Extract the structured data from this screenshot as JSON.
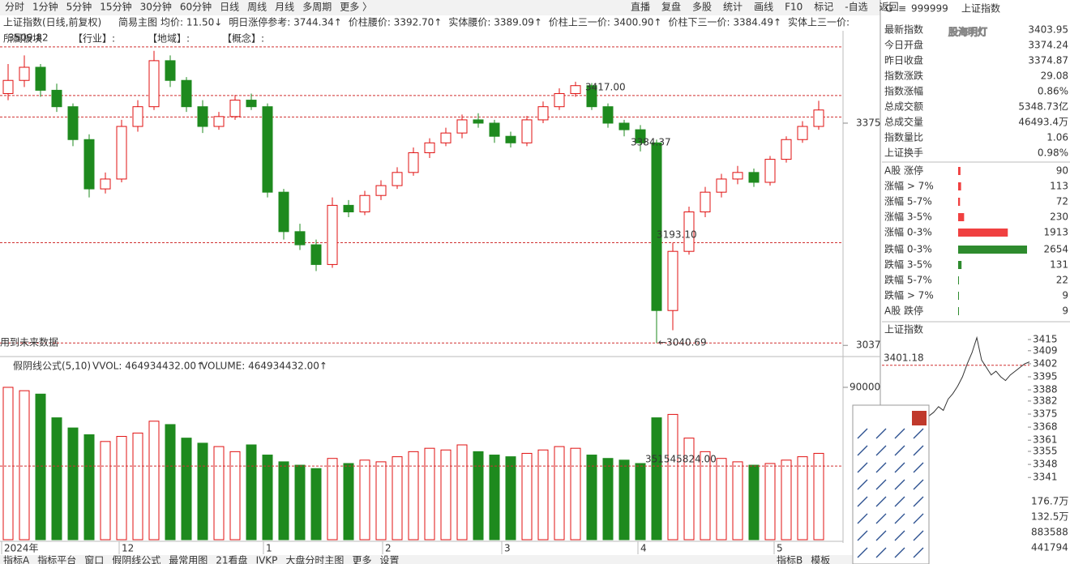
{
  "toolbar": {
    "left": [
      "分时",
      "1分钟",
      "5分钟",
      "15分钟",
      "30分钟",
      "60分钟",
      "日线",
      "周线",
      "月线",
      "多周期",
      "更多 〉"
    ],
    "right": [
      "直播",
      "复盘",
      "多股",
      "统计",
      "画线",
      "F10",
      "标记",
      "-自选",
      "返回"
    ]
  },
  "info_bar": {
    "title": "上证指数(日线,前复权)",
    "mode": "简易主图",
    "items": [
      "均价: 11.50↓",
      "明日涨停参考: 3744.34↑",
      "价柱腰价: 3392.70↑",
      "实体腰价: 3389.09↑",
      "价柱上三一价: 3400.90↑",
      "价柱下三一价: 3384.49↑",
      "实体上三一价:"
    ]
  },
  "sector_row": [
    "所属板块",
    "【行业】:",
    "【地域】:",
    "【概念】:"
  ],
  "chart_data": {
    "type": "candlestick",
    "ylim": [
      3020,
      3513
    ],
    "yticks": [
      3375,
      3037
    ],
    "candles": [
      [
        3420,
        3465,
        3410,
        3440
      ],
      [
        3440,
        3478,
        3430,
        3460
      ],
      [
        3460,
        3465,
        3415,
        3425
      ],
      [
        3425,
        3435,
        3392,
        3400
      ],
      [
        3400,
        3405,
        3340,
        3350
      ],
      [
        3350,
        3358,
        3262,
        3275
      ],
      [
        3275,
        3300,
        3268,
        3290
      ],
      [
        3290,
        3380,
        3285,
        3370
      ],
      [
        3370,
        3410,
        3362,
        3400
      ],
      [
        3400,
        3485,
        3395,
        3470
      ],
      [
        3470,
        3478,
        3430,
        3440
      ],
      [
        3440,
        3445,
        3392,
        3400
      ],
      [
        3400,
        3410,
        3360,
        3370
      ],
      [
        3370,
        3392,
        3365,
        3385
      ],
      [
        3385,
        3418,
        3380,
        3410
      ],
      [
        3410,
        3420,
        3395,
        3400
      ],
      [
        3400,
        3405,
        3262,
        3270
      ],
      [
        3270,
        3275,
        3198,
        3210
      ],
      [
        3210,
        3222,
        3182,
        3190
      ],
      [
        3190,
        3198,
        3150,
        3160
      ],
      [
        3160,
        3262,
        3155,
        3250
      ],
      [
        3250,
        3258,
        3232,
        3240
      ],
      [
        3240,
        3272,
        3235,
        3265
      ],
      [
        3265,
        3288,
        3258,
        3280
      ],
      [
        3280,
        3308,
        3275,
        3300
      ],
      [
        3300,
        3338,
        3295,
        3330
      ],
      [
        3330,
        3352,
        3322,
        3345
      ],
      [
        3345,
        3368,
        3340,
        3360
      ],
      [
        3360,
        3388,
        3352,
        3380
      ],
      [
        3380,
        3390,
        3368,
        3375
      ],
      [
        3375,
        3380,
        3345,
        3355
      ],
      [
        3355,
        3362,
        3338,
        3345
      ],
      [
        3345,
        3386,
        3340,
        3380
      ],
      [
        3380,
        3408,
        3375,
        3400
      ],
      [
        3400,
        3428,
        3395,
        3420
      ],
      [
        3420,
        3438,
        3415,
        3432
      ],
      [
        3432,
        3436,
        3395,
        3400
      ],
      [
        3400,
        3405,
        3368,
        3375
      ],
      [
        3375,
        3380,
        3355,
        3365
      ],
      [
        3365,
        3372,
        3332,
        3345
      ],
      [
        3345,
        3350,
        3040.69,
        3090
      ],
      [
        3090,
        3193.1,
        3060,
        3180
      ],
      [
        3180,
        3248,
        3175,
        3240
      ],
      [
        3240,
        3278,
        3232,
        3270
      ],
      [
        3270,
        3298,
        3262,
        3290
      ],
      [
        3290,
        3310,
        3282,
        3300
      ],
      [
        3300,
        3306,
        3278,
        3285
      ],
      [
        3285,
        3325,
        3280,
        3320
      ],
      [
        3320,
        3355,
        3315,
        3350
      ],
      [
        3350,
        3378,
        3345,
        3370
      ],
      [
        3370,
        3409,
        3365,
        3395
      ]
    ],
    "up_color": "#e01010",
    "down_color": "#1e8a1e",
    "ref_lines": [
      3491,
      3417,
      3384.37,
      3193.1,
      3040.69
    ],
    "annotations": [
      "3509.82",
      "3417.00",
      "3384.37",
      "3193.10",
      "←3040.69",
      "用到未来数据"
    ],
    "x_labels": [
      "2024年",
      "12",
      "1",
      "2",
      "3",
      "4",
      "5"
    ]
  },
  "volume_data": {
    "type": "bar",
    "title": "假阴线公式(5,10)",
    "vvol": "VVOL: 464934432.00↑",
    "volume": "VOLUME: 464934432.00↑",
    "ylim": [
      0,
      98600
    ],
    "yticks": [
      90000
    ],
    "values": [
      90000,
      88000,
      86000,
      72000,
      66000,
      62000,
      58000,
      61000,
      63000,
      70000,
      68000,
      60000,
      57000,
      55000,
      52000,
      56000,
      50000,
      46000,
      44000,
      42000,
      48000,
      45000,
      47000,
      46000,
      49000,
      52000,
      54000,
      53000,
      56000,
      52000,
      50000,
      49000,
      51000,
      53000,
      55000,
      54000,
      50000,
      48000,
      47000,
      45000,
      72000,
      74000,
      60000,
      52000,
      48000,
      46000,
      44000,
      45000,
      47000,
      49000,
      51000
    ],
    "ref_line": 43500,
    "ref_label": "351545824.00"
  },
  "bottom_tabs": [
    "指标A",
    "指标平台",
    "窗口",
    "假阴线公式",
    "最常用图",
    "21看盘",
    "IVKP",
    "大盘分时主图",
    "更多",
    "设置",
    "指标B",
    "模板"
  ],
  "side": {
    "header": [
      "G",
      "≡",
      "999999",
      "上证指数"
    ],
    "watermark": "股海明灯",
    "quotes": [
      {
        "label": "最新指数",
        "value": "3403.95",
        "color": "#e01010"
      },
      {
        "label": "今日开盘",
        "value": "3374.24",
        "color": "#e01010"
      },
      {
        "label": "昨日收盘",
        "value": "3374.87",
        "color": "#333333"
      },
      {
        "label": "指数涨跌",
        "value": "29.08",
        "color": "#e01010"
      },
      {
        "label": "指数涨幅",
        "value": "0.86%",
        "color": "#e01010"
      },
      {
        "label": "总成交额",
        "value": "5348.73亿",
        "color": "#333333"
      },
      {
        "label": "总成交量",
        "value": "46493.4万",
        "color": "#333333"
      },
      {
        "label": "指数量比",
        "value": "1.06",
        "color": "#e01010"
      },
      {
        "label": "上证换手",
        "value": "0.98%",
        "color": "#333333"
      }
    ],
    "dist_up": [
      {
        "label": "A股 涨停",
        "value": 90
      },
      {
        "label": "涨幅 > 7%",
        "value": 113
      },
      {
        "label": "涨幅 5-7%",
        "value": 72
      },
      {
        "label": "涨幅 3-5%",
        "value": 230
      },
      {
        "label": "涨幅 0-3%",
        "value": 1913
      }
    ],
    "dist_down": [
      {
        "label": "跌幅 0-3%",
        "value": 2654
      },
      {
        "label": "跌幅 3-5%",
        "value": 131
      },
      {
        "label": "跌幅 5-7%",
        "value": 22
      },
      {
        "label": "跌幅 > 7%",
        "value": 9
      },
      {
        "label": "A股 跌停",
        "value": 9
      }
    ],
    "up_color": "#f04040",
    "down_color": "#2e8b2e"
  },
  "mini_chart": {
    "type": "line",
    "title": "上证指数",
    "ylim": [
      3337,
      3417
    ],
    "yticks": [
      3415,
      3409,
      3402,
      3395,
      3388,
      3382,
      3375,
      3368,
      3361,
      3355,
      3348,
      3341
    ],
    "ref": 3401.18,
    "ref_label": "3401.18",
    "values": [
      3374,
      3376,
      3379,
      3377,
      3383,
      3386,
      3390,
      3395,
      3402,
      3408,
      3416,
      3404,
      3400,
      3396,
      3398,
      3395,
      3393,
      3396,
      3398,
      3400,
      3402,
      3403
    ],
    "vol_ticks": [
      "176.7万",
      "132.5万",
      "883588",
      "441794"
    ]
  }
}
